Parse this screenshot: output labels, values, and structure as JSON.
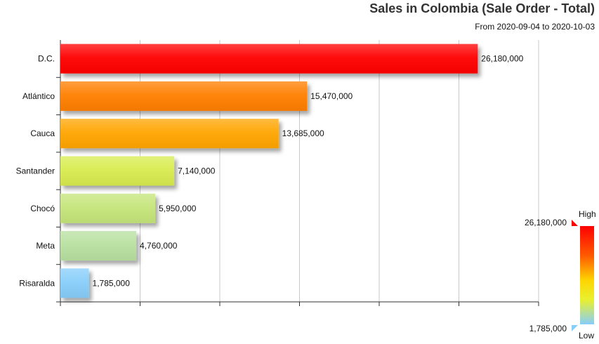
{
  "chart_data": {
    "type": "bar",
    "orientation": "horizontal",
    "title": "Sales in Colombia (Sale Order - Total)",
    "subtitle": "From 2020-09-04 to 2020-10-03",
    "categories": [
      "D.C.",
      "Atlántico",
      "Cauca",
      "Santander",
      "Chocó",
      "Meta",
      "Risaralda"
    ],
    "values": [
      26180000,
      15470000,
      13685000,
      7140000,
      5950000,
      4760000,
      1785000
    ],
    "value_labels": [
      "26,180,000",
      "15,470,000",
      "13,685,000",
      "7,140,000",
      "5,950,000",
      "4,760,000",
      "1,785,000"
    ],
    "xlim": [
      0,
      30000000
    ],
    "grid": true,
    "legend": {
      "type": "color-scale",
      "placement": "right",
      "high_label": "High",
      "low_label": "Low",
      "max_label": "26,180,000",
      "min_label": "1,785,000"
    },
    "colors": [
      "#ff0000",
      "#ff7f00",
      "#ffa500",
      "#d8ec50",
      "#c5e57a",
      "#b8e0a0",
      "#87cefa"
    ]
  }
}
